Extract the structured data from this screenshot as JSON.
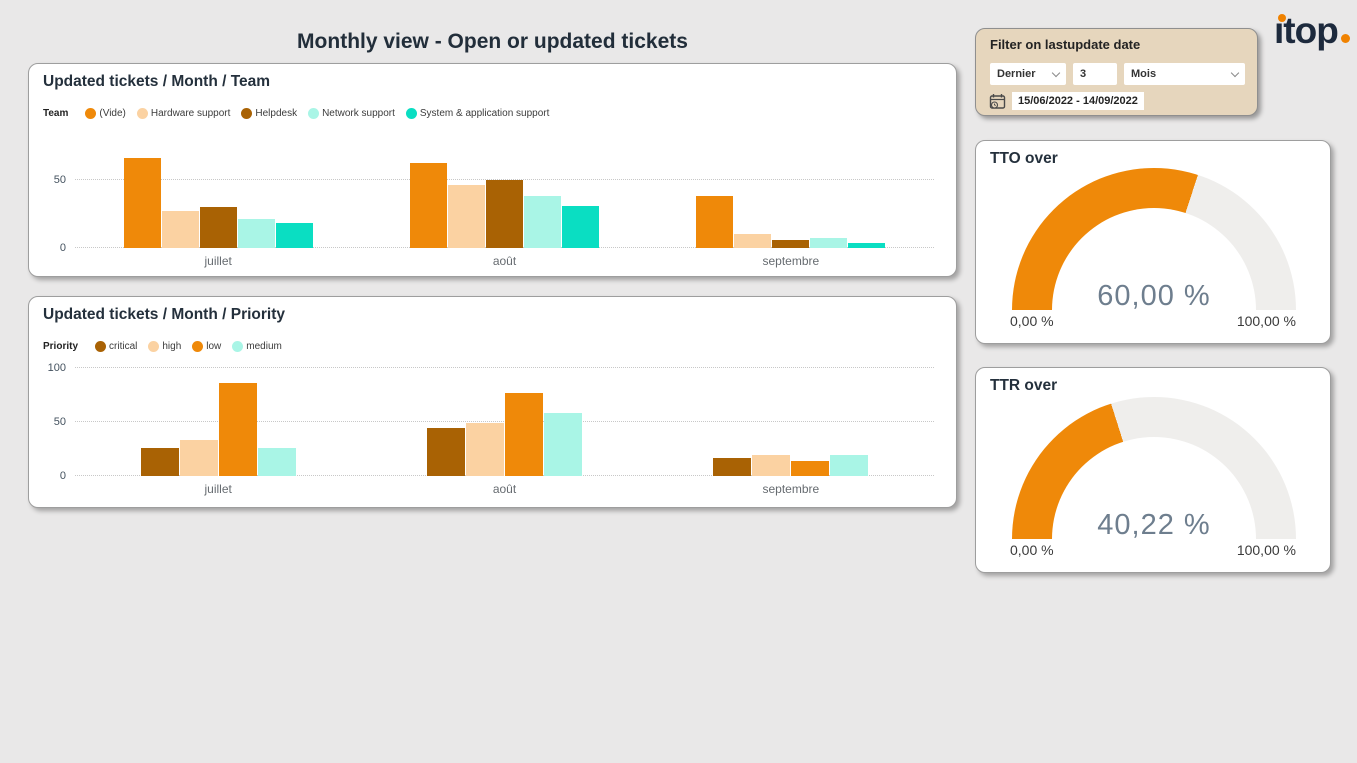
{
  "page": {
    "title": "Monthly view - Open or updated tickets"
  },
  "logo": {
    "word": "ıtop"
  },
  "filter": {
    "title": "Filter on lastupdate date",
    "period_value": "Dernier",
    "count_value": "3",
    "unit_value": "Mois",
    "date_range": "15/06/2022 - 14/09/2022"
  },
  "colors": {
    "accent_orange": "#ef8909",
    "peach": "#fbd2a2",
    "brown": "#a96204",
    "mint": "#a9f5e6",
    "teal": "#0adec2",
    "gauge_track": "#efeeec"
  },
  "chart_data": [
    {
      "id": "tickets-by-team",
      "type": "bar",
      "title": "Updated tickets / Month / Team",
      "legend_title": "Team",
      "legend_position": "top",
      "grid": true,
      "categories": [
        "juillet",
        "août",
        "septembre"
      ],
      "series": [
        {
          "name": "(Vide)",
          "color": "#ef8909",
          "values": [
            66,
            62,
            38
          ]
        },
        {
          "name": "Hardware support",
          "color": "#fbd2a2",
          "values": [
            27,
            46,
            10
          ]
        },
        {
          "name": "Helpdesk",
          "color": "#a96204",
          "values": [
            30,
            50,
            6
          ]
        },
        {
          "name": "Network support",
          "color": "#a9f5e6",
          "values": [
            21,
            38,
            7
          ]
        },
        {
          "name": "System & application support",
          "color": "#0adec2",
          "values": [
            18,
            31,
            4
          ]
        }
      ],
      "yticks": [
        0,
        50
      ],
      "ylim": [
        0,
        71
      ]
    },
    {
      "id": "tickets-by-priority",
      "type": "bar",
      "title": "Updated tickets / Month / Priority",
      "legend_title": "Priority",
      "legend_position": "top",
      "grid": true,
      "categories": [
        "juillet",
        "août",
        "septembre"
      ],
      "series": [
        {
          "name": "critical",
          "color": "#a96204",
          "values": [
            26,
            44,
            17
          ]
        },
        {
          "name": "high",
          "color": "#fbd2a2",
          "values": [
            33,
            49,
            19
          ]
        },
        {
          "name": "low",
          "color": "#ef8909",
          "values": [
            86,
            77,
            14
          ]
        },
        {
          "name": "medium",
          "color": "#a9f5e6",
          "values": [
            26,
            58,
            19
          ]
        }
      ],
      "yticks": [
        0,
        50,
        100
      ],
      "ylim": [
        0,
        100
      ]
    },
    {
      "id": "tto-gauge",
      "type": "gauge",
      "title": "TTO over",
      "value": 60.0,
      "value_label": "60,00 %",
      "min_label": "0,00 %",
      "max_label": "100,00 %",
      "range": [
        0,
        100
      ],
      "fill_color": "#ef8909",
      "track_color": "#efeeec"
    },
    {
      "id": "ttr-gauge",
      "type": "gauge",
      "title": "TTR over",
      "value": 40.22,
      "value_label": "40,22 %",
      "min_label": "0,00 %",
      "max_label": "100,00 %",
      "range": [
        0,
        100
      ],
      "fill_color": "#ef8909",
      "track_color": "#efeeec"
    }
  ]
}
